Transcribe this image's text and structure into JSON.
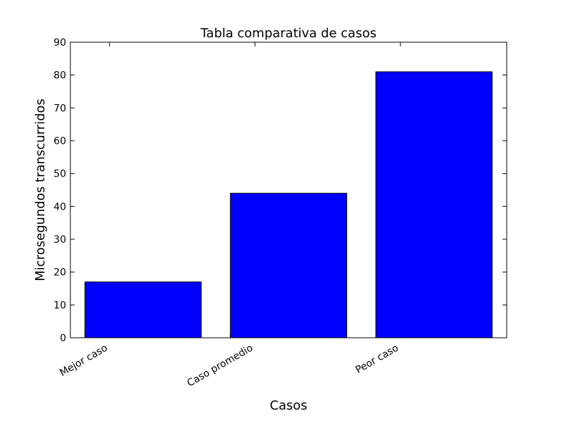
{
  "chart_data": {
    "type": "bar",
    "title": "Tabla comparativa de casos",
    "xlabel": "Casos",
    "ylabel": "Microsegundos transcurridos",
    "categories": [
      "Mejor caso",
      "Caso promedio",
      "Peor caso"
    ],
    "values": [
      17,
      44,
      81
    ],
    "ylim": [
      0,
      90
    ],
    "yticks": [
      0,
      10,
      20,
      30,
      40,
      50,
      60,
      70,
      80,
      90
    ],
    "grid": false,
    "bar_color": "#0000ff",
    "edge_color": "#000000"
  }
}
